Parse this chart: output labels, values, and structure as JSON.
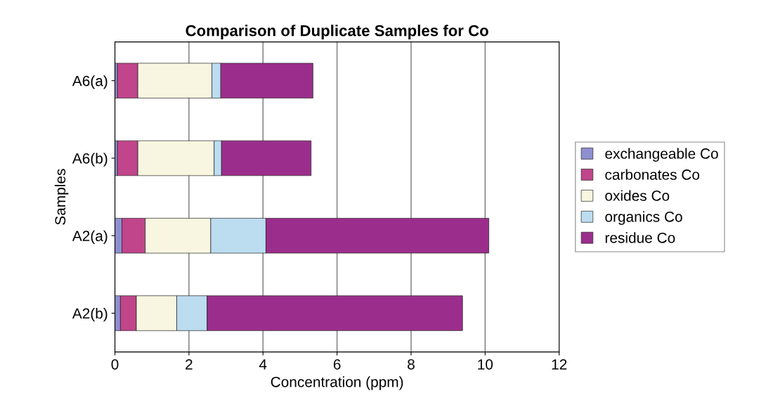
{
  "chart_data": {
    "type": "bar",
    "orientation": "horizontal",
    "stacked": true,
    "title": "Comparison of Duplicate Samples for Co",
    "xlabel": "Concentration (ppm)",
    "ylabel": "Samples",
    "categories": [
      "A6(a)",
      "A6(b)",
      "A2(a)",
      "A2(b)"
    ],
    "series": [
      {
        "name": "exchangeable Co",
        "color": "#8e8fd0",
        "values": [
          0.07,
          0.07,
          0.19,
          0.15
        ]
      },
      {
        "name": "carbonates Co",
        "color": "#c0458a",
        "values": [
          0.55,
          0.55,
          0.63,
          0.43
        ]
      },
      {
        "name": "oxides Co",
        "color": "#f8f6e0",
        "values": [
          2.0,
          2.06,
          1.77,
          1.09
        ]
      },
      {
        "name": "organics Co",
        "color": "#bcdcf0",
        "values": [
          0.24,
          0.2,
          1.49,
          0.82
        ]
      },
      {
        "name": "residue Co",
        "color": "#9b2e8c",
        "values": [
          2.49,
          2.42,
          6.02,
          6.9
        ]
      }
    ],
    "xlim": [
      0,
      12
    ],
    "xticks": [
      0,
      2,
      4,
      6,
      8,
      10,
      12
    ],
    "grid": "x",
    "legend": "right"
  }
}
